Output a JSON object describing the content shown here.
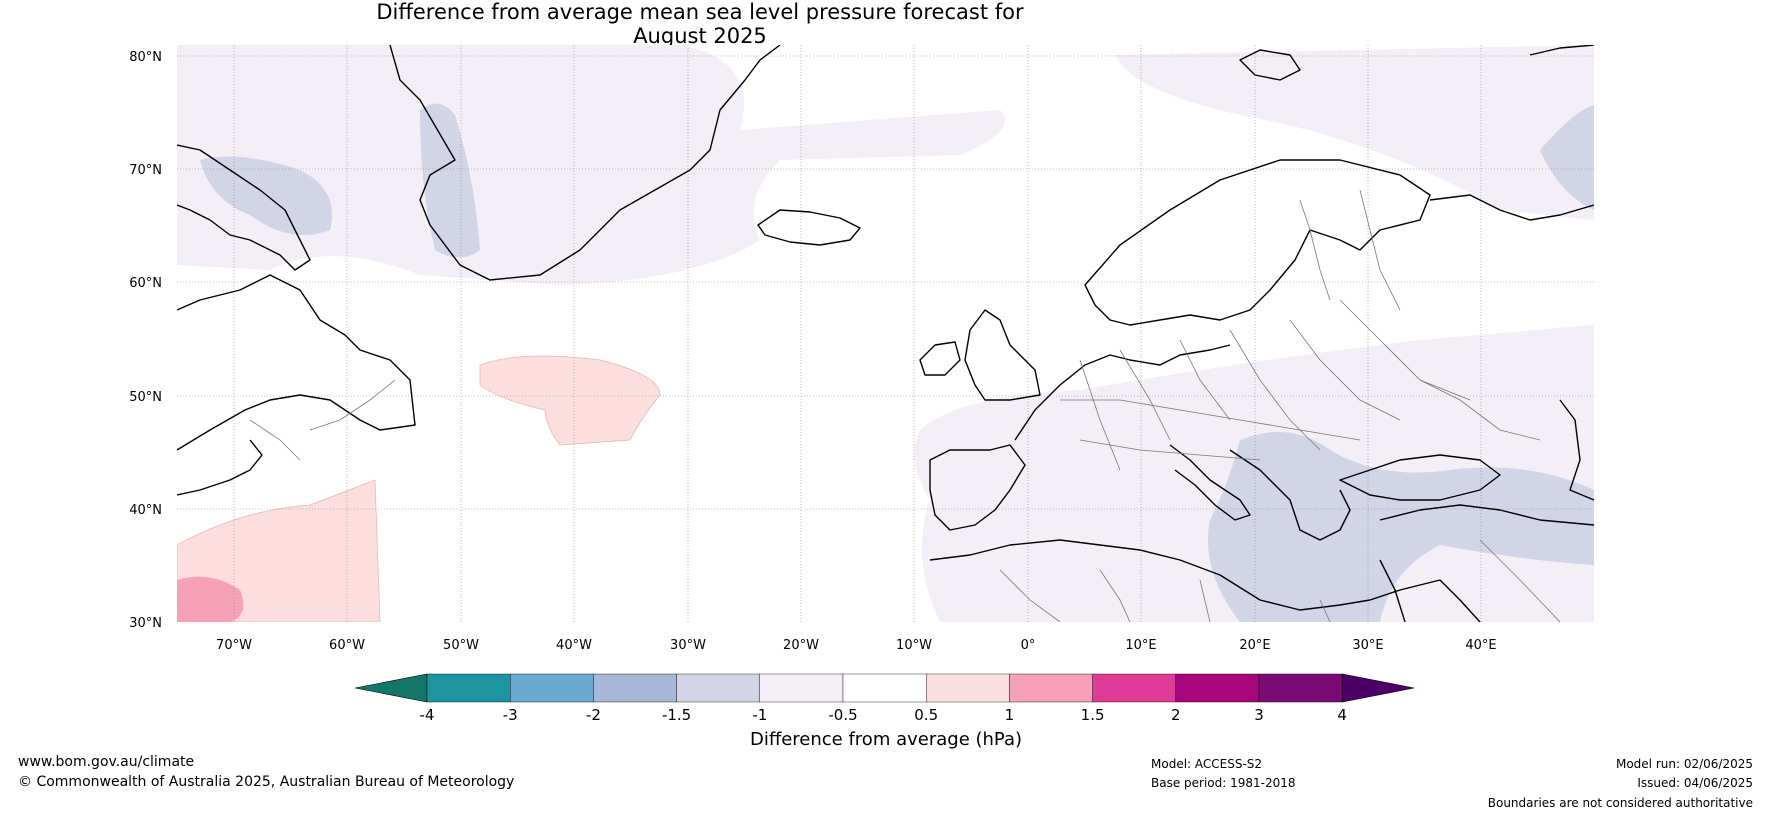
{
  "title": {
    "line1": "Difference from average mean sea level pressure forecast for",
    "line2": "August 2025"
  },
  "map": {
    "lat_labels": [
      "80°N",
      "70°N",
      "60°N",
      "50°N",
      "40°N",
      "30°N"
    ],
    "lon_labels": [
      "70°W",
      "60°W",
      "50°W",
      "40°W",
      "30°W",
      "20°W",
      "10°W",
      "0°",
      "10°E",
      "20°E",
      "30°E",
      "40°E"
    ]
  },
  "colorbar": {
    "label": "Difference from average (hPa)",
    "tick_labels": [
      "-4",
      "-3",
      "-2",
      "-1.5",
      "-1",
      "-0.5",
      "0.5",
      "1",
      "1.5",
      "2",
      "3",
      "4"
    ],
    "colors": [
      "#12766b",
      "#1e94a0",
      "#6aaad0",
      "#a8b8d8",
      "#d2d4e8",
      "#f4eef6",
      "#ffffff",
      "#fddede",
      "#f7a1b8",
      "#de3c96",
      "#a8067c",
      "#7a0a74",
      "#4c0068"
    ]
  },
  "footer": {
    "website": "www.bom.gov.au/climate",
    "copyright": "© Commonwealth of Australia 2025, Australian Bureau of Meteorology",
    "model": "Model: ACCESS-S2",
    "base_period": "Base period: 1981-2018",
    "model_run": "Model run: 02/06/2025",
    "issued": "Issued: 04/06/2025",
    "disclaimer": "Boundaries are not considered authoritative"
  }
}
